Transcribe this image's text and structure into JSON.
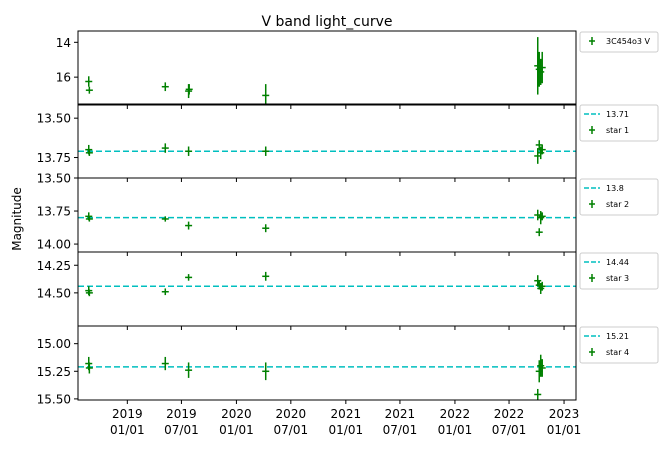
{
  "chart_data": {
    "type": "scatter",
    "title": "V band light_curve",
    "ylabel": "Magnitude",
    "x_ticks": [
      "2019\n01/01",
      "2019\n07/01",
      "2020\n01/01",
      "2020\n07/01",
      "2021\n01/01",
      "2021\n07/01",
      "2022\n01/01",
      "2022\n07/01",
      "2023\n01/01"
    ],
    "x_tick_dates": [
      "2019-01-01",
      "2019-07-01",
      "2020-01-01",
      "2020-07-01",
      "2021-01-01",
      "2021-07-01",
      "2022-01-01",
      "2022-07-01",
      "2023-01-01"
    ],
    "xlim": [
      "2018-07-20",
      "2023-02-10"
    ],
    "y_inverted": true,
    "colors": {
      "points": "#008000",
      "reference_line": "#00bfbf"
    },
    "panels": [
      {
        "legend": [
          {
            "label": "3C454o3 V",
            "kind": "errorbar"
          }
        ],
        "ylim": [
          13.35,
          17.6
        ],
        "y_ticks": [
          14,
          16
        ],
        "reference": null,
        "points": [
          {
            "x": "2018-08-25",
            "y": 16.25,
            "err": 0.3
          },
          {
            "x": "2018-08-27",
            "y": 16.75,
            "err": 0.2
          },
          {
            "x": "2019-05-08",
            "y": 16.55,
            "err": 0.25
          },
          {
            "x": "2019-07-25",
            "y": 16.8,
            "err": 0.4
          },
          {
            "x": "2019-07-27",
            "y": 16.7,
            "err": 0.3
          },
          {
            "x": "2020-04-08",
            "y": 17.05,
            "err": 0.65
          },
          {
            "x": "2022-10-05",
            "y": 15.35,
            "err": 1.65
          },
          {
            "x": "2022-10-10",
            "y": 15.55,
            "err": 1.0
          },
          {
            "x": "2022-10-15",
            "y": 15.7,
            "err": 0.75
          },
          {
            "x": "2022-10-20",
            "y": 15.45,
            "err": 0.9
          }
        ]
      },
      {
        "legend": [
          {
            "label": "13.71",
            "kind": "line"
          },
          {
            "label": "star 1",
            "kind": "errorbar"
          }
        ],
        "ylim": [
          13.41,
          13.88
        ],
        "y_ticks": [
          13.5,
          13.75
        ],
        "reference": 13.71,
        "points": [
          {
            "x": "2018-08-25",
            "y": 13.7,
            "err": 0.03
          },
          {
            "x": "2018-08-27",
            "y": 13.72,
            "err": 0.02
          },
          {
            "x": "2019-05-08",
            "y": 13.69,
            "err": 0.03
          },
          {
            "x": "2019-07-25",
            "y": 13.71,
            "err": 0.03
          },
          {
            "x": "2020-04-08",
            "y": 13.71,
            "err": 0.03
          },
          {
            "x": "2022-10-05",
            "y": 13.74,
            "err": 0.05
          },
          {
            "x": "2022-10-10",
            "y": 13.67,
            "err": 0.03
          },
          {
            "x": "2022-10-15",
            "y": 13.72,
            "err": 0.04
          },
          {
            "x": "2022-10-20",
            "y": 13.7,
            "err": 0.03
          }
        ]
      },
      {
        "legend": [
          {
            "label": "13.8",
            "kind": "line"
          },
          {
            "label": "star 2",
            "kind": "errorbar"
          }
        ],
        "ylim": [
          13.5,
          14.06
        ],
        "y_ticks": [
          13.5,
          13.75,
          14.0
        ],
        "reference": 13.8,
        "points": [
          {
            "x": "2018-08-25",
            "y": 13.79,
            "err": 0.03
          },
          {
            "x": "2018-08-27",
            "y": 13.81,
            "err": 0.02
          },
          {
            "x": "2019-05-08",
            "y": 13.81,
            "err": 0.02
          },
          {
            "x": "2019-07-25",
            "y": 13.86,
            "err": 0.03
          },
          {
            "x": "2020-04-08",
            "y": 13.88,
            "err": 0.03
          },
          {
            "x": "2022-10-05",
            "y": 13.78,
            "err": 0.04
          },
          {
            "x": "2022-10-10",
            "y": 13.91,
            "err": 0.03
          },
          {
            "x": "2022-10-15",
            "y": 13.8,
            "err": 0.05
          },
          {
            "x": "2022-10-20",
            "y": 13.79,
            "err": 0.03
          }
        ]
      },
      {
        "legend": [
          {
            "label": "14.44",
            "kind": "line"
          },
          {
            "label": "star 3",
            "kind": "errorbar"
          }
        ],
        "ylim": [
          14.13,
          14.8
        ],
        "y_ticks": [
          14.25,
          14.5
        ],
        "reference": 14.44,
        "points": [
          {
            "x": "2018-08-25",
            "y": 14.48,
            "err": 0.04
          },
          {
            "x": "2018-08-27",
            "y": 14.5,
            "err": 0.03
          },
          {
            "x": "2019-05-08",
            "y": 14.49,
            "err": 0.03
          },
          {
            "x": "2019-07-25",
            "y": 14.36,
            "err": 0.03
          },
          {
            "x": "2020-04-08",
            "y": 14.35,
            "err": 0.04
          },
          {
            "x": "2022-10-05",
            "y": 14.39,
            "err": 0.05
          },
          {
            "x": "2022-10-10",
            "y": 14.43,
            "err": 0.04
          },
          {
            "x": "2022-10-15",
            "y": 14.46,
            "err": 0.05
          },
          {
            "x": "2022-10-20",
            "y": 14.44,
            "err": 0.04
          }
        ]
      },
      {
        "legend": [
          {
            "label": "15.21",
            "kind": "line"
          },
          {
            "label": "star 4",
            "kind": "errorbar"
          }
        ],
        "ylim": [
          14.84,
          15.51
        ],
        "y_ticks": [
          15.0,
          15.25,
          15.5
        ],
        "reference": 15.21,
        "points": [
          {
            "x": "2018-08-25",
            "y": 15.18,
            "err": 0.06
          },
          {
            "x": "2018-08-27",
            "y": 15.22,
            "err": 0.05
          },
          {
            "x": "2019-05-08",
            "y": 15.18,
            "err": 0.06
          },
          {
            "x": "2019-07-25",
            "y": 15.24,
            "err": 0.07
          },
          {
            "x": "2020-04-08",
            "y": 15.25,
            "err": 0.08
          },
          {
            "x": "2022-10-05",
            "y": 15.46,
            "err": 0.05
          },
          {
            "x": "2022-10-10",
            "y": 15.25,
            "err": 0.1
          },
          {
            "x": "2022-10-15",
            "y": 15.2,
            "err": 0.1
          },
          {
            "x": "2022-10-20",
            "y": 15.22,
            "err": 0.08
          }
        ]
      }
    ]
  }
}
